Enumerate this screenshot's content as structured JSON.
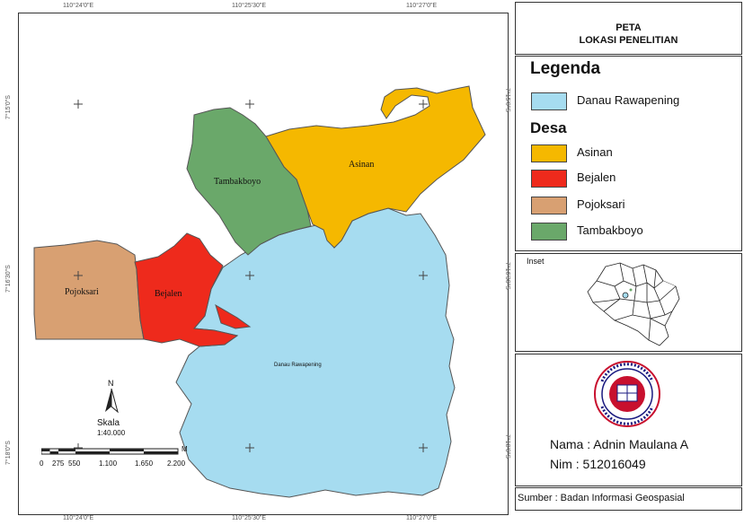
{
  "map": {
    "villages": {
      "asinan": "Asinan",
      "tambakboyo": "Tambakboyo",
      "pojoksari": "Pojoksari",
      "bejalen": "Bejalen",
      "lake": "Danau Rawapening"
    },
    "coords": {
      "top": [
        "110°24'0\"E",
        "110°25'30\"E",
        "110°27'0\"E"
      ],
      "bottom": [
        "110°24'0\"E",
        "110°25'30\"E",
        "110°27'0\"E"
      ],
      "left": [
        "7°15'0\"S",
        "7°16'30\"S",
        "7°18'0\"S"
      ],
      "right": [
        "7°15'0\"S",
        "7°16'30\"S",
        "7°18'0\"S"
      ]
    },
    "north_arrow": "N",
    "scale": {
      "title": "Skala",
      "ratio": "1:40.000",
      "ticks": [
        "0",
        "275",
        "550",
        "1.100",
        "1.650",
        "2.200"
      ],
      "unit": "M"
    }
  },
  "panel": {
    "title_line1": "PETA",
    "title_line2": "LOKASI PENELITIAN",
    "legend_title": "Legenda",
    "desa_title": "Desa",
    "legend_items": {
      "lake": "Danau Rawapening",
      "asinan": "Asinan",
      "bejalen": "Bejalen",
      "pojoksari": "Pojoksari",
      "tambakboyo": "Tambakboyo"
    },
    "inset_label": "Inset",
    "name": "Nama : Adnin Maulana A",
    "nim": "Nim : 512016049",
    "source": "Sumber : Badan Informasi Geospasial"
  },
  "colors": {
    "lake": "#a6dcf0",
    "asinan": "#f5b800",
    "bejalen": "#ee2a1c",
    "pojoksari": "#d8a072",
    "tambakboyo": "#6aa86a"
  }
}
